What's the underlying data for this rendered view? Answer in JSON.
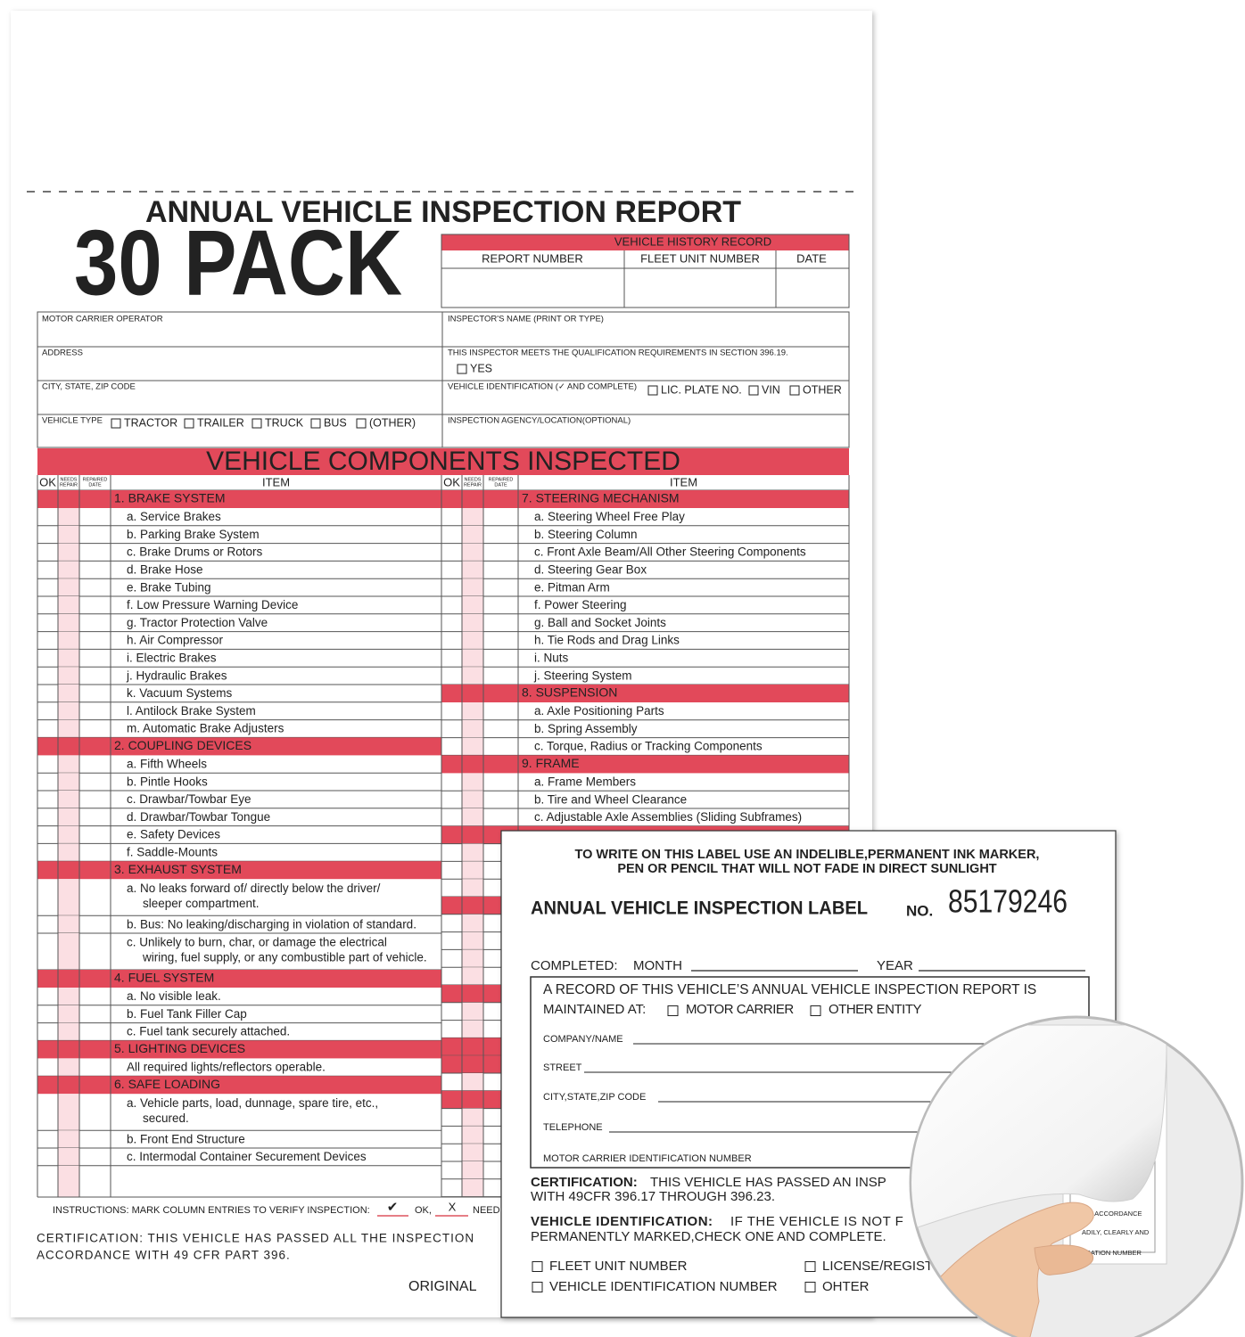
{
  "header": {
    "title": "ANNUAL VEHICLE INSPECTION REPORT",
    "badge": "30 PACK"
  },
  "history": {
    "title": "VEHICLE HISTORY RECORD",
    "columns": [
      "REPORT  NUMBER",
      "FLEET UNIT NUMBER",
      "DATE"
    ]
  },
  "info": {
    "left": [
      {
        "label": "MOTOR CARRIER OPERATOR"
      },
      {
        "label": "ADDRESS"
      },
      {
        "label": "CITY, STATE, ZIP CODE"
      },
      {
        "label": "VEHICLE TYPE",
        "options": [
          "TRACTOR",
          "TRAILER",
          "TRUCK",
          "BUS",
          "(OTHER)"
        ]
      }
    ],
    "right": [
      {
        "label": "INSPECTOR'S NAME (PRINT OR TYPE)"
      },
      {
        "label": "THIS INSPECTOR MEETS THE QUALIFICATION REQUIREMENTS IN SECTION 396.19.",
        "options": [
          "YES"
        ]
      },
      {
        "label": "VEHICLE IDENTIFICATION (✓ AND COMPLETE)",
        "options": [
          "LIC. PLATE NO.",
          "VIN",
          "OTHER"
        ]
      },
      {
        "label": "INSPECTION AGENCY/LOCATION(OPTIONAL)"
      }
    ]
  },
  "components": {
    "title": "VEHICLE COMPONENTS INSPECTED",
    "columns": [
      "OK",
      [
        "NEEDS",
        "REPAIR"
      ],
      [
        "REPAIRED",
        "DATE"
      ],
      "ITEM"
    ],
    "left": [
      {
        "title": "1.  BRAKE SYSTEM",
        "items": [
          "a.  Service Brakes",
          "b.  Parking Brake System",
          "c.  Brake Drums or Rotors",
          "d.  Brake Hose",
          "e.  Brake Tubing",
          "f.   Low Pressure Warning Device",
          "g.  Tractor Protection Valve",
          "h.  Air Compressor",
          "i.   Electric Brakes",
          "j.   Hydraulic Brakes",
          "k.  Vacuum Systems",
          "l.   Antilock Brake System",
          "m. Automatic Brake Adjusters"
        ]
      },
      {
        "title": "2.  COUPLING DEVICES",
        "items": [
          "a.  Fifth Wheels",
          "b.  Pintle Hooks",
          "c.  Drawbar/Towbar Eye",
          "d.  Drawbar/Towbar Tongue",
          "e.  Safety Devices",
          "f.   Saddle-Mounts"
        ]
      },
      {
        "title": "3.  EXHAUST SYSTEM",
        "items": [
          [
            "a.  No leaks forward of/ directly below the driver/",
            "sleeper compartment."
          ],
          "b.  Bus: No leaking/discharging in violation of standard.",
          [
            "c.  Unlikely to burn, char, or damage the electrical",
            "wiring, fuel supply, or any combustible part of vehicle."
          ]
        ]
      },
      {
        "title": "4.  FUEL SYSTEM",
        "items": [
          "a.  No visible leak.",
          "b.  Fuel Tank Filler Cap",
          "c.  Fuel tank securely attached."
        ]
      },
      {
        "title": "5.  LIGHTING DEVICES",
        "items": [
          "All required lights/reflectors operable."
        ]
      },
      {
        "title": "6.  SAFE LOADING",
        "items": [
          [
            "a.  Vehicle parts, load, dunnage, spare tire, etc.,",
            "secured."
          ],
          "b.  Front End Structure",
          "c.  Intermodal Container Securement Devices"
        ]
      }
    ],
    "right": [
      {
        "title": "7.  STEERING MECHANISM",
        "items": [
          "a.  Steering Wheel Free Play",
          "b.  Steering Column",
          "c.  Front Axle Beam/All Other Steering Components",
          "d.  Steering Gear Box",
          "e.  Pitman Arm",
          "f.   Power Steering",
          "g.  Ball and Socket Joints",
          "h.  Tie Rods and Drag Links",
          "i.   Nuts",
          "j.   Steering System"
        ]
      },
      {
        "title": "8.  SUSPENSION",
        "items": [
          "a.  Axle Positioning Parts",
          "b.  Spring Assembly",
          "c.  Torque, Radius or Tracking Components"
        ]
      },
      {
        "title": "9.  FRAME",
        "items": [
          "a.  Frame Members",
          "b.  Tire and Wheel Clearance",
          "c.  Adjustable Axle Assemblies (Sliding Subframes)"
        ]
      }
    ]
  },
  "footer": {
    "instructions": "INSTRUCTIONS: MARK COLUMN ENTRIES TO VERIFY INSPECTION:",
    "ok_mark": "✔",
    "ok": "OK,",
    "need_mark": "X",
    "need": "NEED",
    "certification": [
      "CERTIFICATION: THIS VEHICLE HAS PASSED ALL THE INSPECTION",
      "ACCORDANCE WITH 49 CFR PART 396."
    ],
    "copy": "ORIGINAL"
  },
  "label": {
    "notice": [
      "TO WRITE ON THIS LABEL USE AN INDELIBLE,PERMANENT INK MARKER,",
      "PEN OR PENCIL THAT WILL NOT FADE IN DIRECT SUNLIGHT"
    ],
    "title": "ANNUAL VEHICLE INSPECTION LABEL",
    "number_label": "NO.",
    "number": "85179246",
    "completed": "COMPLETED:",
    "month": "MONTH",
    "year": "YEAR",
    "record": [
      "A RECORD OF THIS VEHICLE’S ANNUAL VEHICLE INSPECTION REPORT  IS",
      "MAINTAINED AT:"
    ],
    "record_options": [
      "MOTOR CARRIER",
      "OTHER ENTITY"
    ],
    "fields": [
      "COMPANY/NAME",
      "STREET",
      "CITY,STATE,ZIP CODE",
      "TELEPHONE",
      "MOTOR CARRIER IDENTIFICATION NUMBER"
    ],
    "certification": {
      "heading": "CERTIFICATION:",
      "lines": [
        "THIS VEHICLE HAS PASSED AN INSP",
        "WITH 49CFR 396.17 THROUGH 396.23."
      ]
    },
    "identification": {
      "heading": "VEHICLE IDENTIFICATION:",
      "lines": [
        "IF THE VEHICLE IS NOT F",
        "PERMANENTLY MARKED,CHECK ONE AND COMPLETE."
      ]
    },
    "options": [
      "FLEET UNIT NUMBER",
      "LICENSE/REGIST",
      "VEHICLE IDENTIFICATION NUMBER",
      "OHTER"
    ]
  },
  "peel": [
    "IN ACCORDANCE",
    "ADILY, CLEARLY AND",
    "GISTRATION NUMBER"
  ]
}
